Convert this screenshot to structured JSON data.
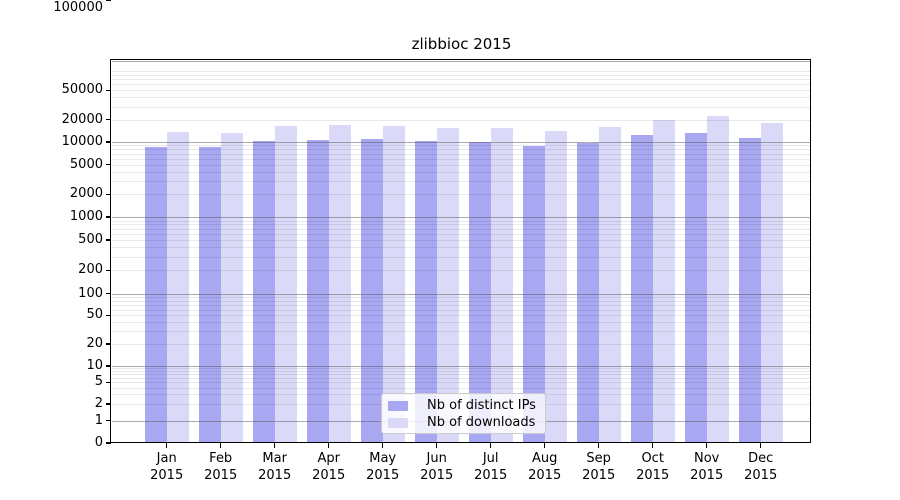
{
  "chart_data": {
    "type": "bar",
    "title": "zlibbioc 2015",
    "categories": [
      "Jan 2015",
      "Feb 2015",
      "Mar 2015",
      "Apr 2015",
      "May 2015",
      "Jun 2015",
      "Jul 2015",
      "Aug 2015",
      "Sep 2015",
      "Oct 2015",
      "Nov 2015",
      "Dec 2015"
    ],
    "months": [
      "Jan",
      "Feb",
      "Mar",
      "Apr",
      "May",
      "Jun",
      "Jul",
      "Aug",
      "Sep",
      "Oct",
      "Nov",
      "Dec"
    ],
    "year": "2015",
    "series": [
      {
        "name": "Nb of distinct IPs",
        "color": "#a8a8f2",
        "values": [
          8650,
          8650,
          10400,
          10800,
          11000,
          10200,
          10000,
          8800,
          9800,
          12300,
          13200,
          11300
        ]
      },
      {
        "name": "Nb of downloads",
        "color": "#dadaf8",
        "values": [
          13800,
          13300,
          16200,
          16900,
          16600,
          15600,
          15400,
          14200,
          16000,
          19900,
          22300,
          18200
        ]
      }
    ],
    "y_axis": {
      "scale": "log-with-zero",
      "ticks": [
        0,
        1,
        2,
        5,
        10,
        20,
        50,
        100,
        200,
        500,
        1000,
        2000,
        5000,
        10000,
        20000,
        50000,
        100000
      ],
      "range": [
        0,
        200000
      ],
      "grid": true
    },
    "x_axis": {
      "label_lines": 2
    },
    "legend": {
      "position": "lower-center",
      "entries": [
        "Nb of distinct IPs",
        "Nb of downloads"
      ]
    },
    "colors": {
      "bar_dark": "#a8a8f2",
      "bar_light": "#dadaf8",
      "grid_major": "#adadad",
      "grid_minor": "#e8e8e8",
      "spine": "#000000",
      "legend_border": "#cccccc"
    }
  }
}
